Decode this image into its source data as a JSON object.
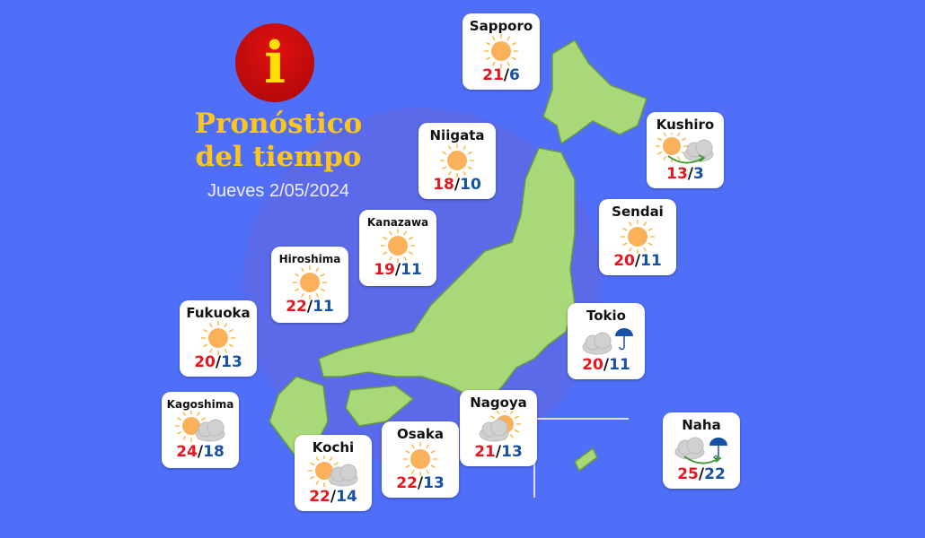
{
  "header": {
    "logo_letter": "i",
    "title_line1": "Pronóstico",
    "title_line2": "del tiempo",
    "date": "Jueves 2/05/2024"
  },
  "colors": {
    "background": "#4f6ff9",
    "land": "#a8d878",
    "high": "#e8141e",
    "low": "#1751a6",
    "title": "#ffc61a"
  },
  "cities": [
    {
      "name": "Sapporo",
      "icon": "sun",
      "high": "21",
      "low": "6"
    },
    {
      "name": "Niigata",
      "icon": "sun",
      "high": "18",
      "low": "10"
    },
    {
      "name": "Kushiro",
      "icon": "sun-to-cloud",
      "high": "13",
      "low": "3"
    },
    {
      "name": "Kanazawa",
      "icon": "sun",
      "high": "19",
      "low": "11"
    },
    {
      "name": "Sendai",
      "icon": "sun",
      "high": "20",
      "low": "11"
    },
    {
      "name": "Hiroshima",
      "icon": "sun",
      "high": "22",
      "low": "11"
    },
    {
      "name": "Fukuoka",
      "icon": "sun",
      "high": "20",
      "low": "13"
    },
    {
      "name": "Tokio",
      "icon": "cloud-umbrella",
      "high": "20",
      "low": "11"
    },
    {
      "name": "Kagoshima",
      "icon": "sun-cloud",
      "high": "24",
      "low": "18"
    },
    {
      "name": "Nagoya",
      "icon": "cloud-sun",
      "high": "21",
      "low": "13"
    },
    {
      "name": "Osaka",
      "icon": "sun",
      "high": "22",
      "low": "13"
    },
    {
      "name": "Kochi",
      "icon": "sun-cloud",
      "high": "22",
      "low": "14"
    },
    {
      "name": "Naha",
      "icon": "cloud-to-umbrella",
      "high": "25",
      "low": "22"
    }
  ]
}
